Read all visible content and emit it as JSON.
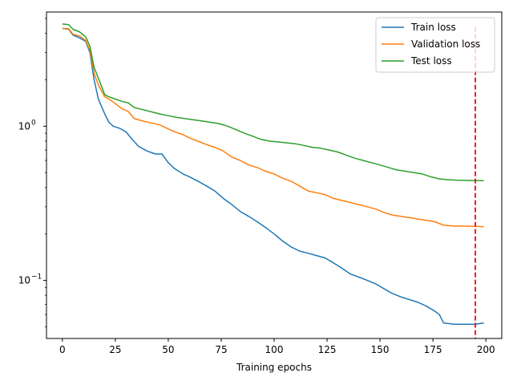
{
  "chart_data": {
    "type": "line",
    "title": "",
    "xlabel": "Training epochs",
    "ylabel": "",
    "xlim": [
      -7.5,
      207.5
    ],
    "ylim": [
      0.042,
      5.5
    ],
    "yscale": "log",
    "grid": false,
    "legend_position": "top-right",
    "x_ticks": [
      0,
      25,
      50,
      75,
      100,
      125,
      150,
      175,
      200
    ],
    "x_tick_labels": [
      "0",
      "25",
      "50",
      "75",
      "100",
      "125",
      "150",
      "175",
      "200"
    ],
    "y_major_ticks": [
      0.1,
      1
    ],
    "y_major_tick_labels": [
      "10",
      "10"
    ],
    "y_major_tick_exponents": [
      "−1",
      "0"
    ],
    "y_minor_ticks": [
      0.05,
      0.06,
      0.07,
      0.08,
      0.09,
      0.2,
      0.3,
      0.4,
      0.5,
      0.6,
      0.7,
      0.8,
      0.9,
      2,
      3,
      4,
      5
    ],
    "vline": {
      "x": 195,
      "color": "#ff0000",
      "style": "dashed"
    },
    "series": [
      {
        "name": "Train loss",
        "color": "#1f77b4",
        "points": [
          [
            0,
            4.3
          ],
          [
            3,
            4.25
          ],
          [
            5,
            3.9
          ],
          [
            8,
            3.75
          ],
          [
            11,
            3.55
          ],
          [
            13,
            3.0
          ],
          [
            15,
            2.0
          ],
          [
            17,
            1.5
          ],
          [
            20,
            1.2
          ],
          [
            22,
            1.06
          ],
          [
            24,
            1.0
          ],
          [
            27,
            0.97
          ],
          [
            30,
            0.92
          ],
          [
            33,
            0.82
          ],
          [
            36,
            0.74
          ],
          [
            40,
            0.69
          ],
          [
            44,
            0.66
          ],
          [
            47,
            0.66
          ],
          [
            50,
            0.58
          ],
          [
            53,
            0.53
          ],
          [
            57,
            0.49
          ],
          [
            60,
            0.47
          ],
          [
            64,
            0.44
          ],
          [
            68,
            0.41
          ],
          [
            72,
            0.38
          ],
          [
            76,
            0.34
          ],
          [
            80,
            0.31
          ],
          [
            84,
            0.28
          ],
          [
            88,
            0.26
          ],
          [
            92,
            0.24
          ],
          [
            96,
            0.22
          ],
          [
            100,
            0.2
          ],
          [
            104,
            0.18
          ],
          [
            108,
            0.165
          ],
          [
            112,
            0.155
          ],
          [
            116,
            0.15
          ],
          [
            120,
            0.145
          ],
          [
            124,
            0.14
          ],
          [
            128,
            0.13
          ],
          [
            132,
            0.12
          ],
          [
            136,
            0.11
          ],
          [
            140,
            0.105
          ],
          [
            144,
            0.1
          ],
          [
            148,
            0.095
          ],
          [
            152,
            0.088
          ],
          [
            156,
            0.082
          ],
          [
            160,
            0.078
          ],
          [
            164,
            0.075
          ],
          [
            168,
            0.072
          ],
          [
            172,
            0.068
          ],
          [
            176,
            0.063
          ],
          [
            178,
            0.06
          ],
          [
            180,
            0.053
          ],
          [
            185,
            0.052
          ],
          [
            190,
            0.052
          ],
          [
            195,
            0.052
          ],
          [
            199,
            0.053
          ]
        ]
      },
      {
        "name": "Validation loss",
        "color": "#ff7f0e",
        "points": [
          [
            0,
            4.3
          ],
          [
            3,
            4.28
          ],
          [
            5,
            3.95
          ],
          [
            8,
            3.85
          ],
          [
            11,
            3.6
          ],
          [
            13,
            3.1
          ],
          [
            15,
            2.2
          ],
          [
            17,
            1.85
          ],
          [
            20,
            1.55
          ],
          [
            22,
            1.5
          ],
          [
            25,
            1.4
          ],
          [
            28,
            1.3
          ],
          [
            31,
            1.25
          ],
          [
            34,
            1.12
          ],
          [
            38,
            1.08
          ],
          [
            42,
            1.05
          ],
          [
            46,
            1.02
          ],
          [
            50,
            0.96
          ],
          [
            53,
            0.92
          ],
          [
            57,
            0.88
          ],
          [
            60,
            0.84
          ],
          [
            64,
            0.8
          ],
          [
            68,
            0.76
          ],
          [
            72,
            0.73
          ],
          [
            76,
            0.69
          ],
          [
            80,
            0.63
          ],
          [
            84,
            0.6
          ],
          [
            88,
            0.56
          ],
          [
            92,
            0.54
          ],
          [
            96,
            0.51
          ],
          [
            100,
            0.49
          ],
          [
            104,
            0.46
          ],
          [
            108,
            0.44
          ],
          [
            112,
            0.41
          ],
          [
            116,
            0.38
          ],
          [
            120,
            0.37
          ],
          [
            124,
            0.36
          ],
          [
            128,
            0.34
          ],
          [
            132,
            0.33
          ],
          [
            136,
            0.32
          ],
          [
            140,
            0.31
          ],
          [
            144,
            0.3
          ],
          [
            148,
            0.29
          ],
          [
            152,
            0.275
          ],
          [
            156,
            0.265
          ],
          [
            160,
            0.26
          ],
          [
            164,
            0.255
          ],
          [
            168,
            0.25
          ],
          [
            172,
            0.245
          ],
          [
            176,
            0.24
          ],
          [
            180,
            0.228
          ],
          [
            185,
            0.225
          ],
          [
            190,
            0.225
          ],
          [
            195,
            0.224
          ],
          [
            199,
            0.223
          ]
        ]
      },
      {
        "name": "Test loss",
        "color": "#2ca02c",
        "points": [
          [
            0,
            4.6
          ],
          [
            3,
            4.55
          ],
          [
            5,
            4.25
          ],
          [
            8,
            4.1
          ],
          [
            11,
            3.8
          ],
          [
            13,
            3.3
          ],
          [
            15,
            2.4
          ],
          [
            17,
            2.05
          ],
          [
            20,
            1.6
          ],
          [
            22,
            1.55
          ],
          [
            25,
            1.5
          ],
          [
            28,
            1.45
          ],
          [
            31,
            1.42
          ],
          [
            34,
            1.32
          ],
          [
            38,
            1.28
          ],
          [
            42,
            1.24
          ],
          [
            46,
            1.2
          ],
          [
            50,
            1.17
          ],
          [
            54,
            1.14
          ],
          [
            58,
            1.12
          ],
          [
            62,
            1.1
          ],
          [
            66,
            1.08
          ],
          [
            70,
            1.06
          ],
          [
            74,
            1.04
          ],
          [
            78,
            1.0
          ],
          [
            82,
            0.95
          ],
          [
            86,
            0.9
          ],
          [
            90,
            0.86
          ],
          [
            94,
            0.82
          ],
          [
            98,
            0.8
          ],
          [
            102,
            0.79
          ],
          [
            106,
            0.78
          ],
          [
            110,
            0.77
          ],
          [
            114,
            0.75
          ],
          [
            118,
            0.73
          ],
          [
            122,
            0.72
          ],
          [
            126,
            0.7
          ],
          [
            130,
            0.68
          ],
          [
            134,
            0.65
          ],
          [
            138,
            0.62
          ],
          [
            142,
            0.6
          ],
          [
            146,
            0.58
          ],
          [
            150,
            0.56
          ],
          [
            154,
            0.54
          ],
          [
            158,
            0.52
          ],
          [
            162,
            0.51
          ],
          [
            166,
            0.5
          ],
          [
            170,
            0.49
          ],
          [
            174,
            0.47
          ],
          [
            178,
            0.455
          ],
          [
            182,
            0.45
          ],
          [
            186,
            0.447
          ],
          [
            190,
            0.445
          ],
          [
            195,
            0.444
          ],
          [
            199,
            0.443
          ]
        ]
      }
    ]
  }
}
